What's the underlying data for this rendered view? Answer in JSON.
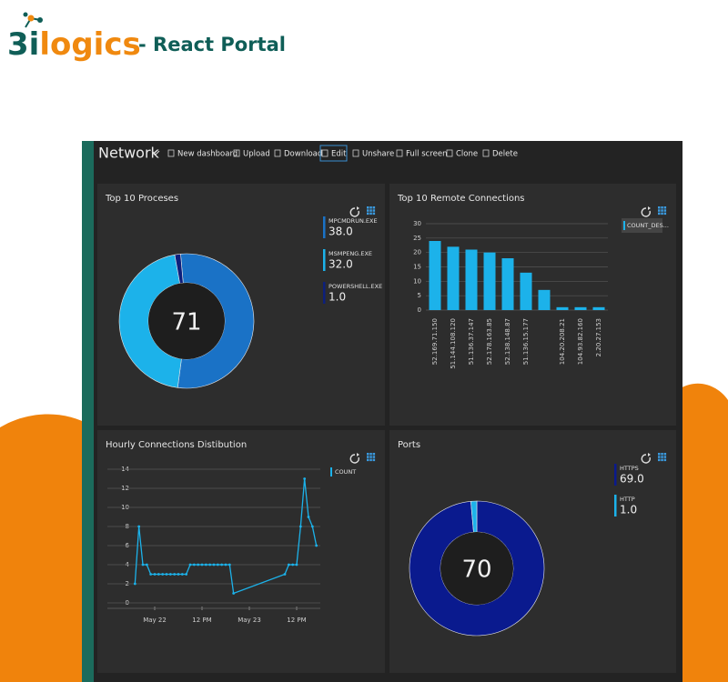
{
  "header": {
    "brand_prefix": "3i",
    "brand_suffix": "logics",
    "title": "- React Portal"
  },
  "toolbar": {
    "title": "Network",
    "buttons": [
      "New dashboard",
      "Upload",
      "Download",
      "Edit",
      "Unshare",
      "Full screen",
      "Clone",
      "Delete"
    ]
  },
  "panels": [
    {
      "title": "Top 10 Proceses",
      "chart": {
        "type": "donut",
        "total": 71,
        "categories": [
          "MPCMDRUN.EXE",
          "MSMPENG.EXE",
          "POWERSHELL.EXE"
        ],
        "values": [
          38,
          32,
          1
        ],
        "value_labels": [
          "38.0",
          "32.0",
          "1.0"
        ],
        "colors": [
          "#1a72c6",
          "#1cb2ea",
          "#0d1f7c"
        ]
      }
    },
    {
      "title": "Top 10 Remote Connections",
      "chart": {
        "type": "bar",
        "categories": [
          "52.169.71.150",
          "51.144.108.120",
          "51.136.37.147",
          "52.178.163.85",
          "52.138.148.87",
          "51.136.15.177",
          null,
          "104.20.208.21",
          "104.93.82.160",
          "2.20.27.153"
        ],
        "series": [
          {
            "name": "COUNT_DES...",
            "color": "#1cb2ea",
            "values": [
              24,
              22,
              21,
              20,
              18,
              13,
              7,
              1,
              1,
              1
            ]
          }
        ],
        "ylim": [
          0,
          30
        ],
        "yticks": [
          0,
          5,
          10,
          15,
          20,
          25,
          30
        ],
        "grid": true
      }
    },
    {
      "title": "Hourly Connections Distibution",
      "chart": {
        "type": "line",
        "x": [
          -5,
          -4,
          -3,
          -2,
          -1,
          0,
          1,
          2,
          3,
          4,
          5,
          6,
          7,
          8,
          9,
          10,
          11,
          12,
          13,
          14,
          15,
          16,
          17,
          18,
          19,
          20,
          33,
          34,
          35,
          36,
          37,
          38,
          39,
          40,
          41
        ],
        "series": [
          {
            "name": "COUNT",
            "color": "#1cb2ea",
            "values": [
              2,
              8,
              4,
              4,
              3,
              3,
              3,
              3,
              3,
              3,
              3,
              3,
              3,
              3,
              4,
              4,
              4,
              4,
              4,
              4,
              4,
              4,
              4,
              4,
              4,
              1,
              3,
              4,
              4,
              4,
              8,
              13,
              9,
              8,
              6
            ]
          }
        ],
        "xlim": [
          -6,
          42
        ],
        "xticks": [
          {
            "value": 0,
            "label": "May 22"
          },
          {
            "value": 12,
            "label": "12 PM"
          },
          {
            "value": 24,
            "label": "May 23"
          },
          {
            "value": 36,
            "label": "12 PM"
          }
        ],
        "ylim": [
          0,
          14
        ],
        "yticks": [
          0,
          2,
          4,
          6,
          8,
          10,
          12,
          14
        ],
        "grid": true
      }
    },
    {
      "title": "Ports",
      "chart": {
        "type": "donut",
        "total": 70,
        "categories": [
          "HTTPS",
          "HTTP"
        ],
        "values": [
          69,
          1
        ],
        "value_labels": [
          "69.0",
          "1.0"
        ],
        "colors": [
          "#0a1a8e",
          "#1cb2ea"
        ]
      }
    }
  ]
}
